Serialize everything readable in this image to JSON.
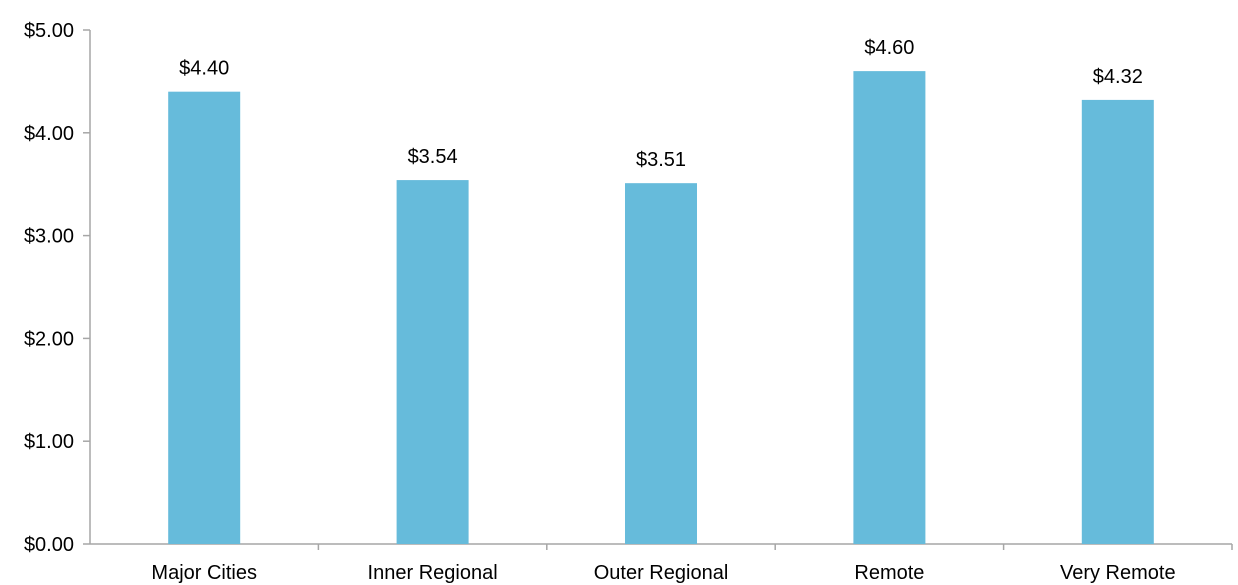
{
  "chart_data": {
    "type": "bar",
    "categories": [
      "Major Cities",
      "Inner Regional",
      "Outer Regional",
      "Remote",
      "Very Remote"
    ],
    "values": [
      4.4,
      3.54,
      3.51,
      4.6,
      4.32
    ],
    "data_labels": [
      "$4.40",
      "$3.54",
      "$3.51",
      "$4.60",
      "$4.32"
    ],
    "ylim": [
      0,
      5
    ],
    "yticks": [
      0,
      1,
      2,
      3,
      4,
      5
    ],
    "ytick_labels": [
      "$0.00",
      "$1.00",
      "$2.00",
      "$3.00",
      "$4.00",
      "$5.00"
    ],
    "title": "",
    "xlabel": "",
    "ylabel": "",
    "grid": false,
    "legend": "none",
    "bar_color": "#66BBDB",
    "axis_color": "#A6A6A6"
  }
}
